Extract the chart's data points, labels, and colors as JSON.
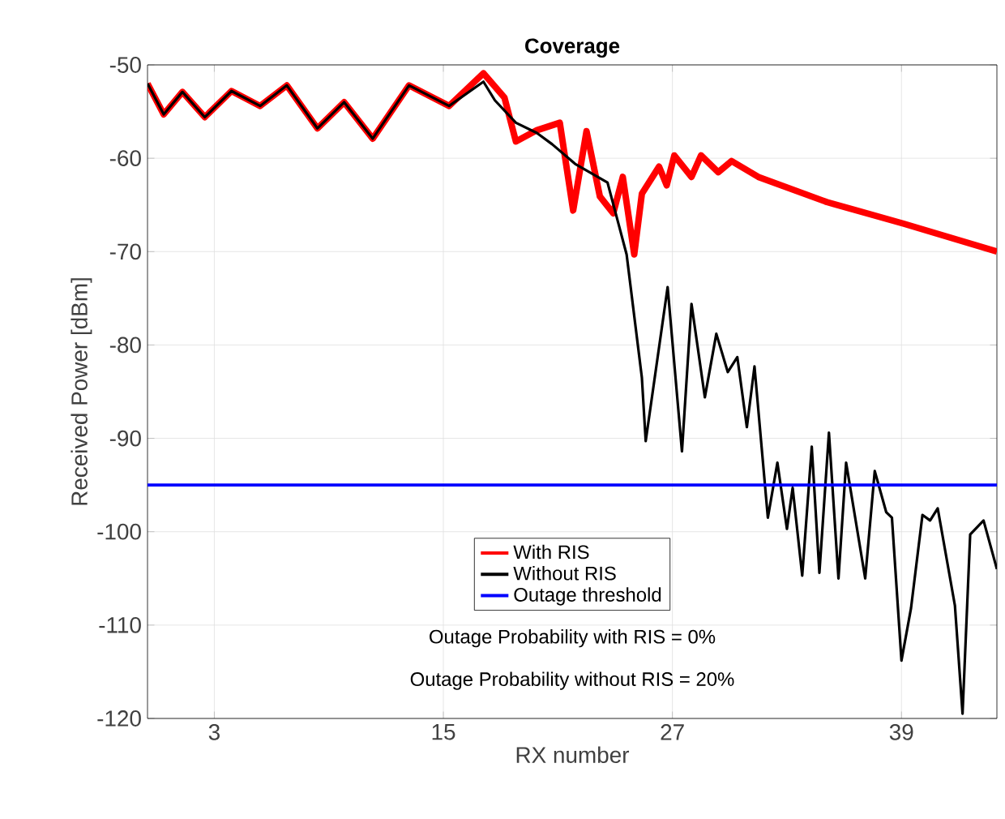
{
  "chart_data": {
    "type": "line",
    "title": "Coverage",
    "xlabel": "RX number",
    "ylabel": "Received Power [dBm]",
    "xlim": [
      -0.5,
      44
    ],
    "ylim": [
      -120,
      -50
    ],
    "xticks": [
      3,
      15,
      27,
      39
    ],
    "yticks": [
      -120,
      -110,
      -100,
      -90,
      -80,
      -70,
      -60,
      -50
    ],
    "grid": true,
    "legend": "bottom",
    "line_style": "solid",
    "series": [
      {
        "name": "With RIS",
        "color": "#ff0000",
        "x": [
          -0.5,
          0.35,
          1.33,
          2.5,
          3.9,
          5.4,
          6.8,
          8.4,
          9.8,
          11.3,
          13.2,
          15.3,
          17.1,
          18.2,
          18.8,
          19.9,
          21.1,
          21.8,
          22.5,
          23.2,
          23.9,
          24.4,
          25.0,
          25.4,
          26.3,
          26.7,
          27.1,
          28.0,
          28.5,
          29.4,
          30.1,
          31.5,
          35.1,
          39.1,
          44
        ],
        "values": [
          -52,
          -55.3,
          -52.9,
          -55.6,
          -52.8,
          -54.4,
          -52.2,
          -56.8,
          -54,
          -57.9,
          -52.2,
          -54.4,
          -50.9,
          -53.5,
          -58.2,
          -57,
          -56.2,
          -65.6,
          -57.1,
          -64.1,
          -65.9,
          -62,
          -70.3,
          -63.8,
          -60.9,
          -62.9,
          -59.7,
          -62,
          -59.7,
          -61.5,
          -60.3,
          -62,
          -64.7,
          -67,
          -70
        ]
      },
      {
        "name": "Without RIS",
        "color": "#000000",
        "x": [
          -0.5,
          0.35,
          1.33,
          2.5,
          3.9,
          5.4,
          6.8,
          8.4,
          9.8,
          11.3,
          13.2,
          15.3,
          17.1,
          17.7,
          18.8,
          19.9,
          20.7,
          21.9,
          23.6,
          24.6,
          25.4,
          25.6,
          26.75,
          27.5,
          28.0,
          28.7,
          29.3,
          29.9,
          30.4,
          30.9,
          31.3,
          32.0,
          32.5,
          33.0,
          33.3,
          33.8,
          34.3,
          34.7,
          35.2,
          35.7,
          36.1,
          37.1,
          37.6,
          38.2,
          38.5,
          39.0,
          39.5,
          40.1,
          40.5,
          40.9,
          41.8,
          42.2,
          42.6,
          43.3,
          44
        ],
        "values": [
          -52,
          -55.3,
          -52.9,
          -55.6,
          -52.8,
          -54.4,
          -52.2,
          -56.8,
          -54,
          -57.9,
          -52.2,
          -54.4,
          -51.8,
          -53.8,
          -56.2,
          -57.3,
          -58.5,
          -60.6,
          -62.6,
          -70.3,
          -83.5,
          -90.3,
          -73.8,
          -91.4,
          -75.6,
          -85.6,
          -78.8,
          -82.9,
          -81.3,
          -88.8,
          -82.3,
          -98.5,
          -92.6,
          -99.7,
          -95.3,
          -104.7,
          -90.9,
          -104.4,
          -89.4,
          -105,
          -92.6,
          -105,
          -93.5,
          -97.9,
          -98.5,
          -113.8,
          -108.2,
          -98.2,
          -98.8,
          -97.5,
          -107.9,
          -119.5,
          -100.3,
          -98.8,
          -104
        ]
      }
    ],
    "ref_lines": [
      {
        "axis": "y",
        "value": -95,
        "label": "Outage threshold",
        "color": "#0000ff"
      }
    ],
    "annotations": [
      "Outage Probability with RIS = 0%",
      "Outage Probability without RIS = 20%"
    ]
  }
}
